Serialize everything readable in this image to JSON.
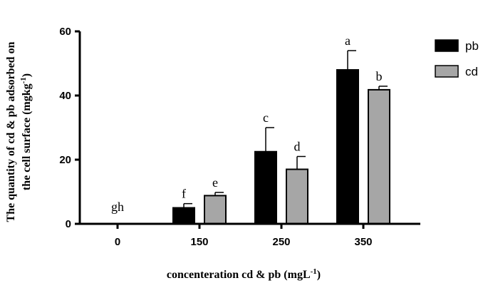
{
  "chart_data": {
    "type": "bar",
    "categories": [
      "0",
      "150",
      "250",
      "350"
    ],
    "series": [
      {
        "name": "pb",
        "color": "#000000",
        "values": [
          0,
          5,
          22.5,
          48
        ],
        "errors": [
          0,
          1.3,
          7.5,
          6
        ],
        "letters": [
          "gh",
          "f",
          "c",
          "a"
        ]
      },
      {
        "name": "cd",
        "color": "#a6a6a6",
        "values": [
          0,
          8.8,
          17,
          41.8
        ],
        "errors": [
          0,
          1,
          4,
          1.1
        ],
        "letters": [
          "",
          "e",
          "d",
          "b"
        ]
      }
    ],
    "ylim": [
      0,
      60
    ],
    "yticks": [
      "0",
      "20",
      "40",
      "60"
    ],
    "ylabel_line1": "The quantity of cd & pb adsorbed on",
    "ylabel_line2_main": "the cell surface (mgkg",
    "ylabel_line2_sup": "-1",
    "ylabel_line2_end": ")",
    "xlabel_main": "concenteration cd & pb (mgL",
    "xlabel_sup": "-1",
    "xlabel_end": ")",
    "legend_position": "top-right"
  }
}
